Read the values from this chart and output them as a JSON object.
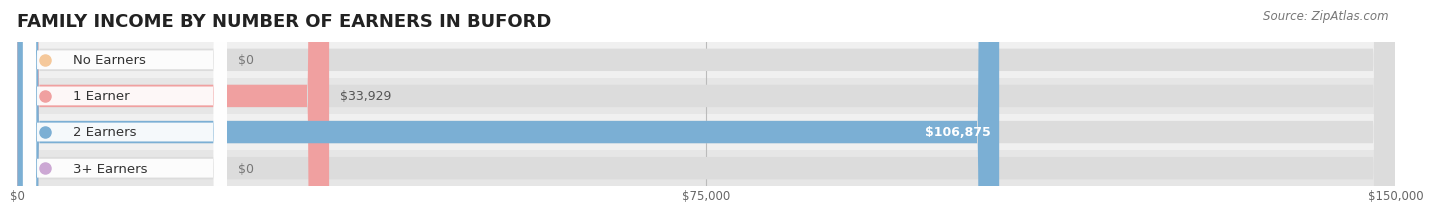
{
  "title": "FAMILY INCOME BY NUMBER OF EARNERS IN BUFORD",
  "source": "Source: ZipAtlas.com",
  "categories": [
    "No Earners",
    "1 Earner",
    "2 Earners",
    "3+ Earners"
  ],
  "values": [
    0,
    33929,
    106875,
    0
  ],
  "max_value": 150000,
  "bar_colors": [
    "#f5c89a",
    "#f0a0a0",
    "#7bafd4",
    "#cca8d4"
  ],
  "label_colors": [
    "#888888",
    "#888888",
    "#ffffff",
    "#888888"
  ],
  "tick_labels": [
    "$0",
    "$75,000",
    "$150,000"
  ],
  "tick_values": [
    0,
    75000,
    150000
  ],
  "value_labels": [
    "$0",
    "$33,929",
    "$106,875",
    "$0"
  ],
  "title_fontsize": 13,
  "label_fontsize": 9.5,
  "value_fontsize": 9,
  "source_fontsize": 8.5,
  "background_color": "#ffffff",
  "row_bg_even": "#f2f2f2",
  "row_bg_odd": "#e8e8e8",
  "bar_bg_color": "#e0e0e0"
}
